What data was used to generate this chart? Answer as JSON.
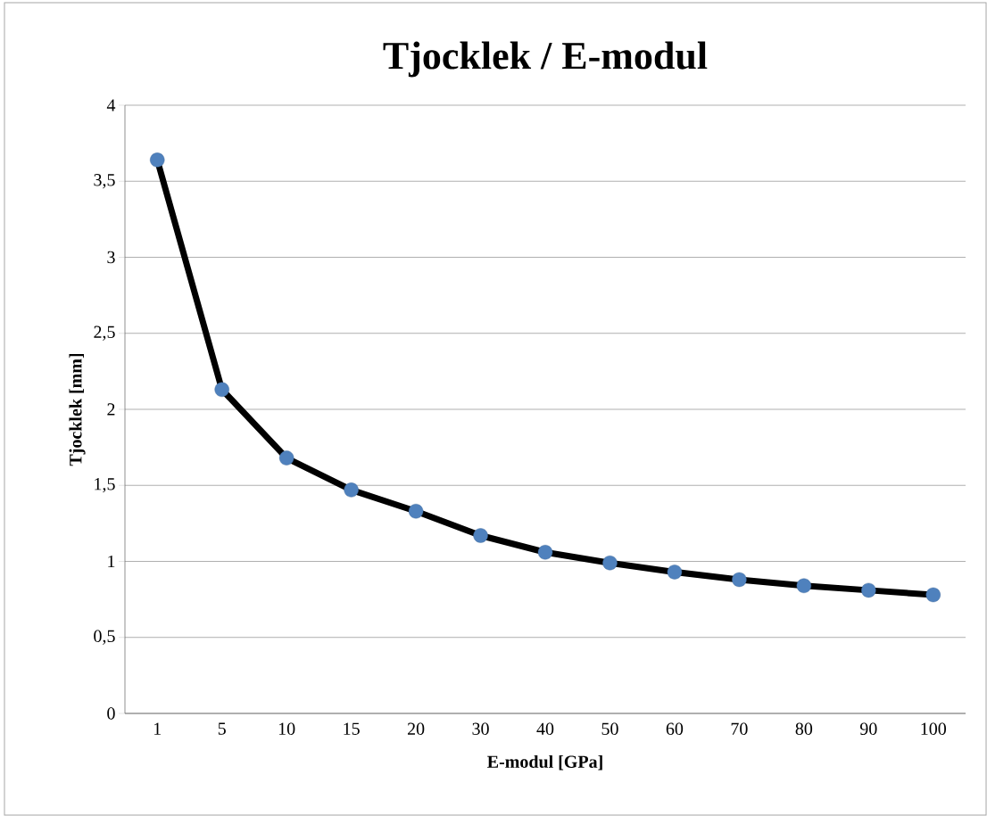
{
  "chart_data": {
    "type": "line",
    "title": "Tjocklek / E-modul",
    "xlabel": "E-modul [GPa]",
    "ylabel": "Tjocklek [mm]",
    "categories": [
      "1",
      "5",
      "10",
      "15",
      "20",
      "30",
      "40",
      "50",
      "60",
      "70",
      "80",
      "90",
      "100"
    ],
    "series": [
      {
        "color": "#000000",
        "colors": [
          "#4f81bd",
          "#4f81bd",
          "#4f81bd",
          "#4f81bd",
          "#4f81bd",
          "#4f81bd",
          "#4f81bd",
          "#4f81bd",
          "#4f81bd",
          "#4f81bd",
          "#4f81bd",
          "#4f81bd",
          "#4f81bd"
        ],
        "values": [
          3.64,
          2.13,
          1.68,
          1.47,
          1.33,
          1.17,
          1.06,
          0.99,
          0.93,
          0.88,
          0.84,
          0.81,
          0.78
        ]
      }
    ],
    "ylim": [
      0,
      4
    ],
    "yticks": [
      0,
      {
        "value": 0.5,
        "label": "0,5"
      },
      1,
      {
        "value": 1.5,
        "label": "1,5"
      },
      2,
      {
        "value": 2.5,
        "label": "2,5"
      },
      3,
      {
        "value": 3.5,
        "label": "3,5"
      },
      4
    ],
    "grid": "y",
    "marker": "circle",
    "line_style": "solid"
  }
}
